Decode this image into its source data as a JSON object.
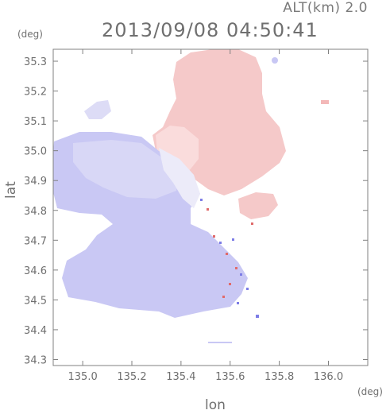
{
  "header": {
    "altitude_label": "ALT(km)  2.0",
    "timestamp": "2013/09/08 04:50:41"
  },
  "axes": {
    "y_unit": "(deg)",
    "x_unit": "(deg)",
    "x_label": "lon",
    "y_label": "lat",
    "x_range": [
      134.88,
      136.16
    ],
    "y_range": [
      34.28,
      35.34
    ],
    "x_ticks": [
      "135.0",
      "135.2",
      "135.4",
      "135.6",
      "135.8",
      "136.0"
    ],
    "y_ticks": [
      "35.3",
      "35.2",
      "35.1",
      "35.0",
      "34.9",
      "34.8",
      "34.7",
      "34.6",
      "34.5",
      "34.4",
      "34.3"
    ]
  },
  "colors": {
    "negative_velocity": "#c8c8f5",
    "positive_velocity": "#f5c8c8",
    "axis": "#808080"
  }
}
